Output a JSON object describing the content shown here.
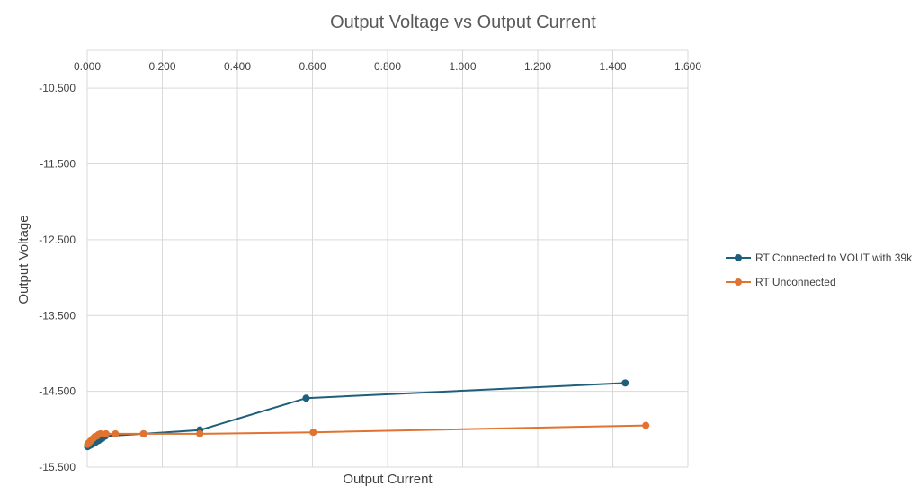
{
  "chart_data": {
    "type": "scatter",
    "title": "Output Voltage vs Output Current",
    "xlabel": "Output Current",
    "ylabel": "Output Voltage",
    "xlim": [
      0,
      1.6
    ],
    "ylim": [
      -15.5,
      -10
    ],
    "x_ticks": [
      "0.000",
      "0.200",
      "0.400",
      "0.600",
      "0.800",
      "1.000",
      "1.200",
      "1.400",
      "1.600"
    ],
    "y_ticks": [
      "-10.500",
      "-11.500",
      "-12.500",
      "-13.500",
      "-14.500",
      "-15.500"
    ],
    "y_tick_values": [
      -10.5,
      -11.5,
      -12.5,
      -13.5,
      -14.5,
      -15.5
    ],
    "grid": true,
    "legend_position": "right",
    "series": [
      {
        "name": "RT Connected to VOUT with 39k",
        "color": "#1f5f7a",
        "points": [
          [
            0.001,
            -15.23
          ],
          [
            0.004,
            -15.22
          ],
          [
            0.008,
            -15.21
          ],
          [
            0.012,
            -15.2
          ],
          [
            0.016,
            -15.19
          ],
          [
            0.02,
            -15.18
          ],
          [
            0.025,
            -15.16
          ],
          [
            0.03,
            -15.15
          ],
          [
            0.035,
            -15.13
          ],
          [
            0.04,
            -15.12
          ],
          [
            0.048,
            -15.09
          ],
          [
            0.15,
            -15.06
          ],
          [
            0.3,
            -15.01
          ],
          [
            0.583,
            -14.59
          ],
          [
            1.433,
            -14.39
          ]
        ]
      },
      {
        "name": "RT Unconnected",
        "color": "#e07331",
        "points": [
          [
            0.001,
            -15.2
          ],
          [
            0.004,
            -15.18
          ],
          [
            0.008,
            -15.16
          ],
          [
            0.012,
            -15.14
          ],
          [
            0.016,
            -15.12
          ],
          [
            0.02,
            -15.1
          ],
          [
            0.025,
            -15.09
          ],
          [
            0.03,
            -15.07
          ],
          [
            0.035,
            -15.06
          ],
          [
            0.05,
            -15.06
          ],
          [
            0.075,
            -15.06
          ],
          [
            0.15,
            -15.06
          ],
          [
            0.3,
            -15.06
          ],
          [
            0.602,
            -15.04
          ],
          [
            1.488,
            -14.95
          ]
        ]
      }
    ]
  }
}
